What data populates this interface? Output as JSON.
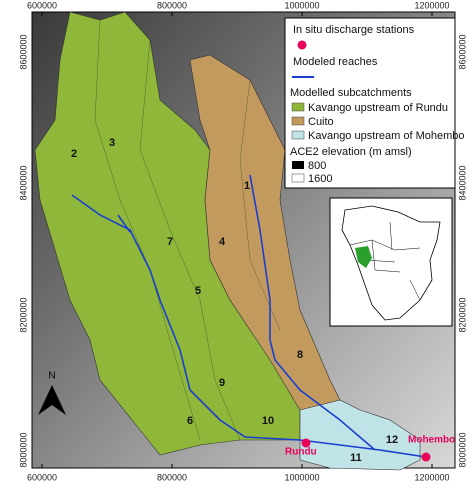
{
  "axes": {
    "top": [
      "600000",
      "800000",
      "1000000",
      "1200000"
    ],
    "bottom": [
      "600000",
      "800000",
      "1000000",
      "1200000"
    ],
    "left": [
      "8600000",
      "8400000",
      "8200000",
      "8000000"
    ],
    "right": [
      "8600000",
      "8400000",
      "8200000",
      "8000000"
    ]
  },
  "legend": {
    "stations": "In situ discharge stations",
    "reaches": "Modeled reaches",
    "subcatchments": {
      "title": "Modelled subcatchments",
      "items": [
        "Kavango upstream of Rundu",
        "Cuito",
        "Kavango upstream of Mohembo"
      ]
    },
    "elevation": {
      "title": "ACE2 elevation (m amsl)",
      "items": [
        "800",
        "1600"
      ]
    }
  },
  "subcatchment_labels": [
    "1",
    "2",
    "3",
    "4",
    "5",
    "6",
    "7",
    "8",
    "9",
    "10",
    "11",
    "12"
  ],
  "stations": [
    "Rundu",
    "Mohembo"
  ],
  "north_arrow": "N"
}
